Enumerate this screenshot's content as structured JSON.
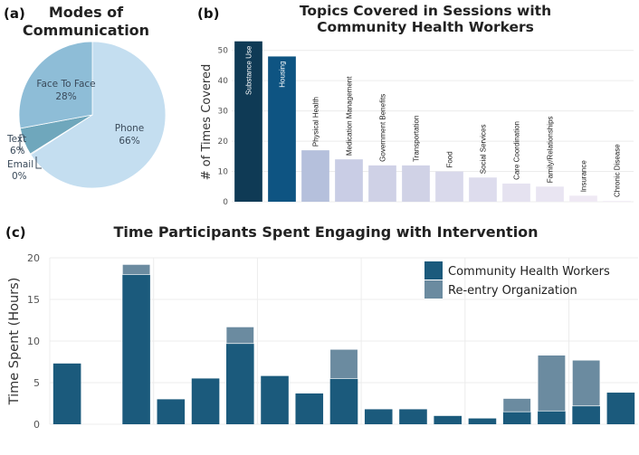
{
  "panel_labels": [
    "(a)",
    "(b)",
    "(c)"
  ],
  "chart_data": [
    {
      "type": "pie",
      "title_lines": [
        "Modes of",
        "Communication"
      ],
      "slices": [
        {
          "label": "Phone",
          "pct_label": "66%",
          "value": 66,
          "color": "#c4def0"
        },
        {
          "label": "Email",
          "pct_label": "0%",
          "value": 0.2,
          "color": "#5a8fb5"
        },
        {
          "label": "Text",
          "pct_label": "6%",
          "value": 6,
          "color": "#6fa7bc"
        },
        {
          "label": "Face To Face",
          "pct_label": "28%",
          "value": 28,
          "color": "#8ebdd7"
        }
      ]
    },
    {
      "type": "bar",
      "title_lines": [
        "Topics Covered in Sessions with",
        "Community Health Workers"
      ],
      "ylabel": "# of Times Covered",
      "ylim": [
        0,
        55
      ],
      "yticks": [
        "0",
        "10",
        "20",
        "30",
        "40",
        "50"
      ],
      "categories": [
        "Substance Use",
        "Housing",
        "Physical Health",
        "Medication Management",
        "Government Benefits",
        "Transportation",
        "Food",
        "Social Services",
        "Care Coordination",
        "Family/Relationships",
        "Insurance",
        "Chronic Disease"
      ],
      "values": [
        53,
        48,
        17,
        14,
        12,
        12,
        10,
        8,
        6,
        5,
        2,
        0.3
      ],
      "colors": [
        "#0f3a55",
        "#0e5482",
        "#b5c0dc",
        "#c9cde5",
        "#cfd1e6",
        "#d0d2e6",
        "#d9d9eb",
        "#dddced",
        "#e5e2f0",
        "#e9e5f2",
        "#efe9f4",
        "#f3eef6"
      ]
    },
    {
      "type": "bar",
      "title": "Time Participants Spent Engaging with Intervention",
      "ylabel": "Time Spent (Hours)",
      "ylim": [
        0,
        20
      ],
      "yticks": [
        "0",
        "5",
        "10",
        "15",
        "20"
      ],
      "series": [
        {
          "name": "Community Health Workers",
          "color": "#1b5a7c",
          "values": [
            7.3,
            0,
            18.0,
            3.0,
            5.5,
            9.7,
            5.8,
            3.7,
            5.5,
            1.8,
            1.8,
            1.0,
            0.7,
            1.5,
            1.6,
            2.2,
            3.8
          ]
        },
        {
          "name": "Re-entry Organization",
          "color": "#6b8ba0",
          "values": [
            0,
            0,
            1.2,
            0,
            0,
            2.0,
            0,
            0,
            3.5,
            0,
            0,
            0,
            0,
            1.6,
            6.7,
            5.5,
            0
          ]
        }
      ]
    }
  ]
}
